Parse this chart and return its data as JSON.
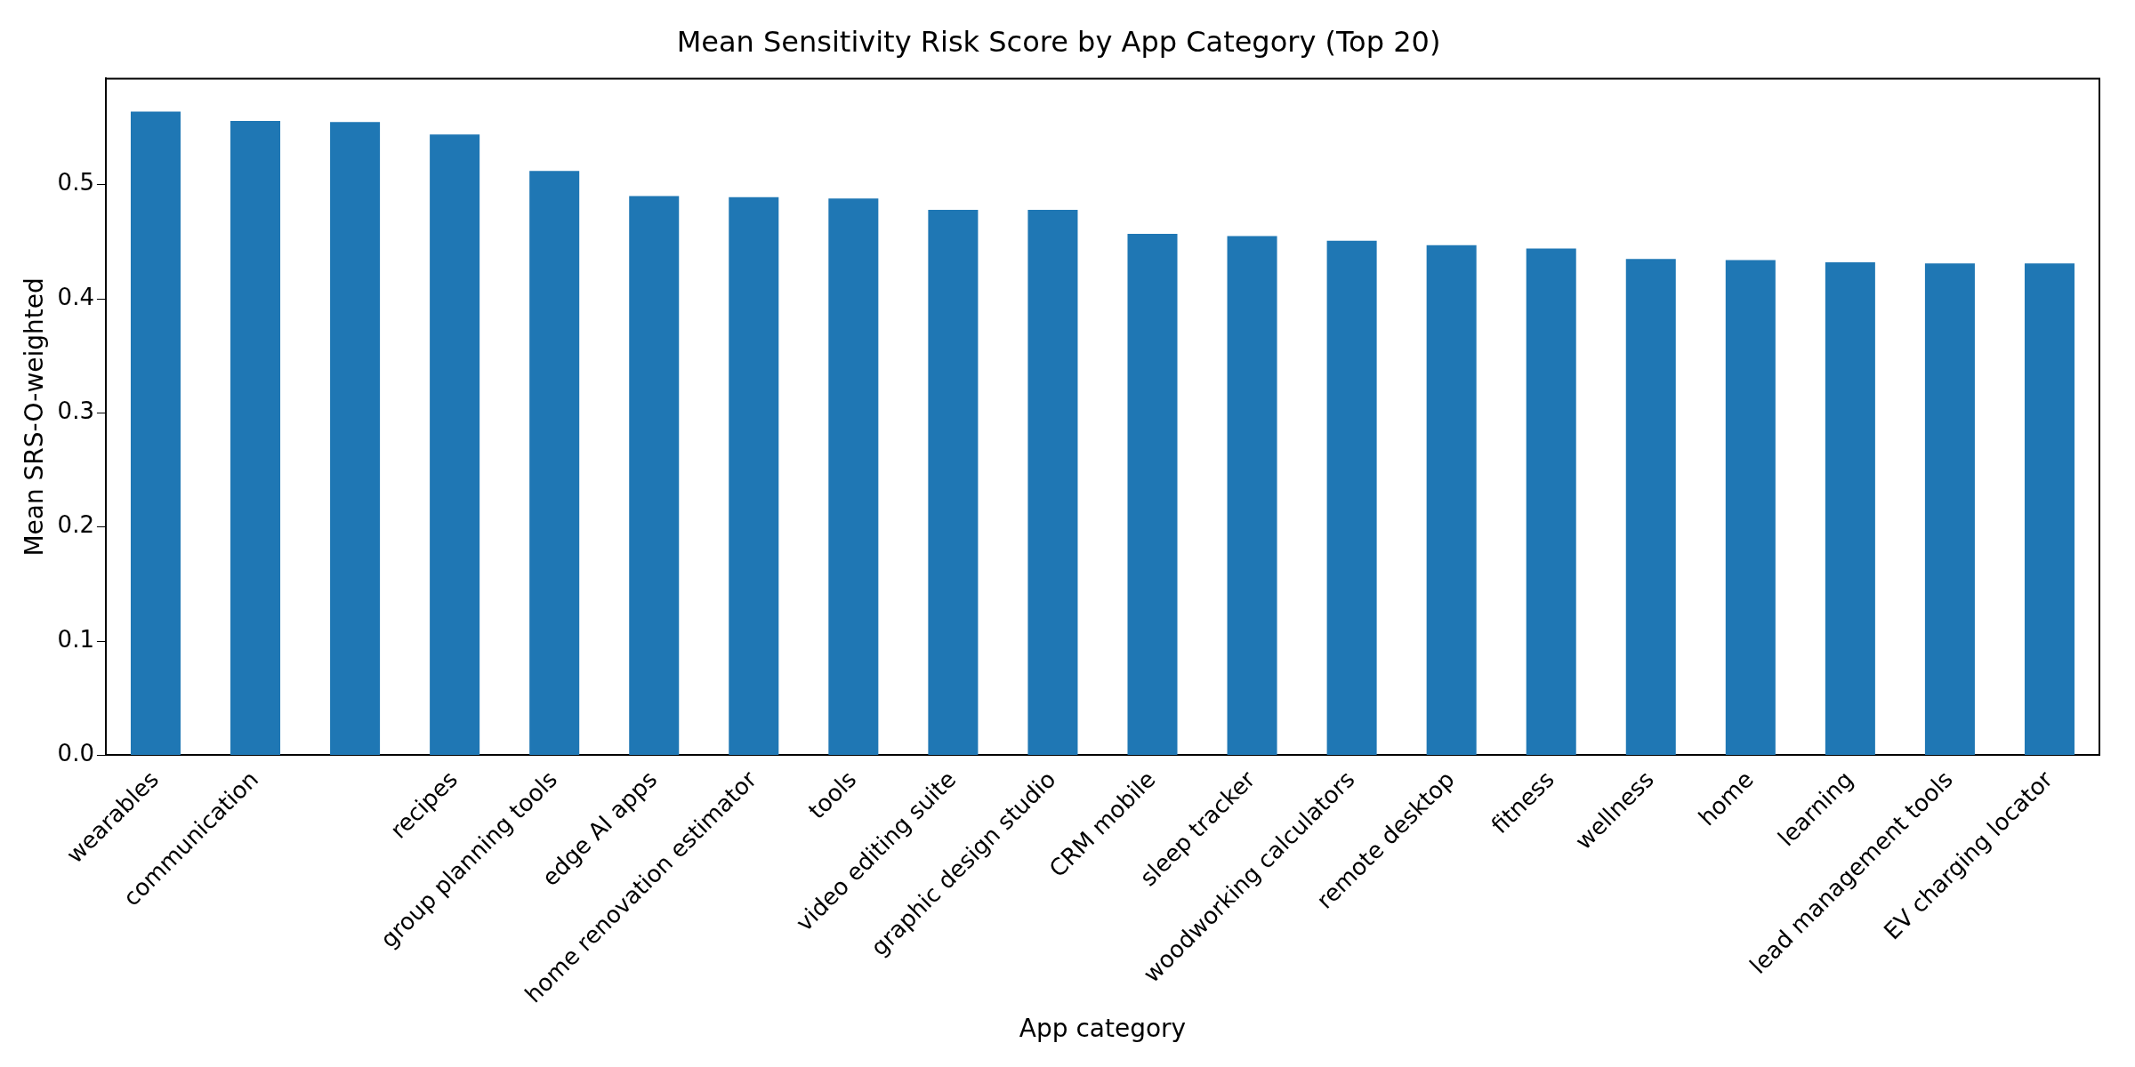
{
  "chart_data": {
    "type": "bar",
    "title": "Mean Sensitivity Risk Score by App Category (Top 20)",
    "xlabel": "App category",
    "ylabel": "Mean SRS-O-weighted",
    "categories": [
      "wearables",
      "communication",
      null,
      "recipes",
      "group planning tools",
      "edge AI apps",
      "home renovation estimator",
      "tools",
      "video editing suite",
      "graphic design studio",
      "CRM mobile",
      "sleep tracker",
      "woodworking calculators",
      "remote desktop",
      "fitness",
      "wellness",
      "home",
      "learning",
      "lead management tools",
      "EV charging locator"
    ],
    "values": [
      0.564,
      0.556,
      0.555,
      0.544,
      0.512,
      0.49,
      0.489,
      0.488,
      0.478,
      0.478,
      0.457,
      0.455,
      0.451,
      0.447,
      0.444,
      0.435,
      0.434,
      0.432,
      0.431,
      0.431
    ],
    "color": "#1f77b4",
    "ylim": [
      0,
      0.593
    ],
    "yticks": [
      {
        "value": 0,
        "label": "0.0"
      },
      {
        "value": 0.1,
        "label": "0.1"
      },
      {
        "value": 0.2,
        "label": "0.2"
      },
      {
        "value": 0.3,
        "label": "0.3"
      },
      {
        "value": 0.4,
        "label": "0.4"
      },
      {
        "value": 0.5,
        "label": "0.5"
      }
    ],
    "grid": false,
    "legend": false
  }
}
